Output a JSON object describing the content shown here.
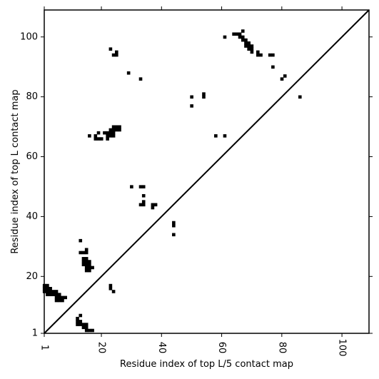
{
  "chart_data": {
    "type": "heatmap",
    "subtype": "contact-map-comparison",
    "xlabel": "Residue index of top L/5 contact map",
    "ylabel": "Residue index of top L contact map",
    "xlim": [
      1,
      109
    ],
    "ylim": [
      1,
      109
    ],
    "x_ticks": [
      "1",
      "20",
      "40",
      "60",
      "80",
      "100"
    ],
    "y_ticks": [
      "1",
      "20",
      "40",
      "60",
      "80",
      "100"
    ],
    "diagonal": true,
    "grid": false,
    "cell_color": "#000000",
    "background_color": "#ffffff",
    "cells_upper": [
      [
        23,
        96
      ],
      [
        24,
        94
      ],
      [
        25,
        95
      ],
      [
        25,
        94
      ],
      [
        29,
        88
      ],
      [
        33,
        86
      ],
      [
        50,
        80
      ],
      [
        50,
        77
      ],
      [
        54,
        81
      ],
      [
        54,
        80
      ],
      [
        61,
        100
      ],
      [
        64,
        101
      ],
      [
        65,
        101
      ],
      [
        66,
        101
      ],
      [
        66,
        100
      ],
      [
        67,
        102
      ],
      [
        67,
        100
      ],
      [
        67,
        99
      ],
      [
        68,
        99
      ],
      [
        68,
        98
      ],
      [
        68,
        97
      ],
      [
        69,
        98
      ],
      [
        69,
        97
      ],
      [
        69,
        96
      ],
      [
        70,
        97
      ],
      [
        70,
        96
      ],
      [
        70,
        95
      ],
      [
        72,
        95
      ],
      [
        72,
        94
      ],
      [
        73,
        94
      ],
      [
        76,
        94
      ],
      [
        77,
        94
      ],
      [
        77,
        90
      ],
      [
        80,
        86
      ],
      [
        81,
        87
      ],
      [
        86,
        80
      ],
      [
        16,
        67
      ],
      [
        18,
        67
      ],
      [
        18,
        66
      ],
      [
        19,
        68
      ],
      [
        19,
        66
      ],
      [
        20,
        66
      ],
      [
        21,
        68
      ],
      [
        22,
        68
      ],
      [
        22,
        67
      ],
      [
        22,
        66
      ],
      [
        23,
        69
      ],
      [
        23,
        68
      ],
      [
        23,
        67
      ],
      [
        24,
        70
      ],
      [
        24,
        69
      ],
      [
        24,
        68
      ],
      [
        24,
        67
      ],
      [
        25,
        70
      ],
      [
        25,
        69
      ],
      [
        26,
        70
      ],
      [
        26,
        69
      ],
      [
        58,
        67
      ],
      [
        61,
        67
      ],
      [
        30,
        50
      ],
      [
        33,
        50
      ],
      [
        34,
        50
      ],
      [
        34,
        47
      ],
      [
        33,
        44
      ],
      [
        34,
        45
      ],
      [
        34,
        44
      ],
      [
        37,
        44
      ],
      [
        37,
        43
      ],
      [
        38,
        44
      ],
      [
        44,
        38
      ],
      [
        44,
        37
      ],
      [
        44,
        34
      ]
    ],
    "cells_lower": [
      [
        1,
        17
      ],
      [
        1,
        16
      ],
      [
        1,
        15
      ],
      [
        2,
        17
      ],
      [
        2,
        16
      ],
      [
        2,
        15
      ],
      [
        2,
        14
      ],
      [
        3,
        16
      ],
      [
        3,
        15
      ],
      [
        3,
        14
      ],
      [
        4,
        15
      ],
      [
        4,
        14
      ],
      [
        5,
        15
      ],
      [
        5,
        14
      ],
      [
        5,
        13
      ],
      [
        5,
        12
      ],
      [
        6,
        14
      ],
      [
        6,
        13
      ],
      [
        6,
        12
      ],
      [
        7,
        13
      ],
      [
        7,
        12
      ],
      [
        8,
        13
      ],
      [
        13,
        32
      ],
      [
        13,
        28
      ],
      [
        14,
        28
      ],
      [
        15,
        29
      ],
      [
        15,
        28
      ],
      [
        14,
        26
      ],
      [
        14,
        25
      ],
      [
        14,
        24
      ],
      [
        15,
        26
      ],
      [
        15,
        25
      ],
      [
        15,
        24
      ],
      [
        15,
        23
      ],
      [
        15,
        22
      ],
      [
        16,
        25
      ],
      [
        16,
        24
      ],
      [
        16,
        23
      ],
      [
        16,
        22
      ],
      [
        17,
        23
      ],
      [
        23,
        17
      ],
      [
        23,
        16
      ],
      [
        24,
        15
      ],
      [
        12,
        6
      ],
      [
        12,
        5
      ],
      [
        12,
        4
      ],
      [
        13,
        7
      ],
      [
        13,
        5
      ],
      [
        13,
        4
      ],
      [
        14,
        4
      ],
      [
        14,
        3
      ],
      [
        15,
        4
      ],
      [
        15,
        3
      ],
      [
        15,
        2
      ],
      [
        16,
        2
      ],
      [
        17,
        2
      ]
    ]
  }
}
